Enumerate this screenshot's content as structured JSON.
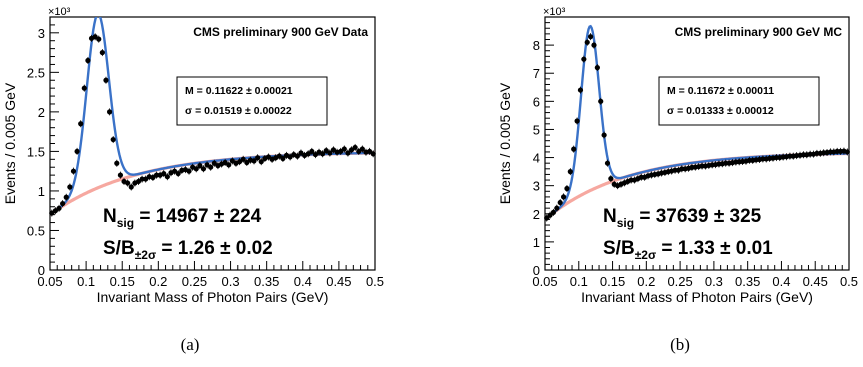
{
  "chart_data": [
    {
      "type": "scatter",
      "subfigure_label": "(a)",
      "title": "CMS preliminary 900 GeV Data",
      "xlabel": "Invariant Mass of Photon Pairs (GeV)",
      "ylabel": "Events / 0.005 GeV",
      "y_multiplier": "×10³",
      "xlim": [
        0.05,
        0.5
      ],
      "ylim": [
        0,
        3.2
      ],
      "xticks": [
        "0.05",
        "0.1",
        "0.15",
        "0.2",
        "0.25",
        "0.3",
        "0.35",
        "0.4",
        "0.45",
        "0.5"
      ],
      "yticks": [
        "0",
        "0.5",
        "1",
        "1.5",
        "2",
        "2.5",
        "3"
      ],
      "fit_box": {
        "mean_label": "M = 0.11622 ± 0.00021",
        "sigma_label": "σ = 0.01519 ± 0.00022"
      },
      "nsig_label": "N",
      "nsig_sub": "sig",
      "nsig_value": "= 14967 ± 224",
      "sb_label": "S/B",
      "sb_sub": "±2σ",
      "sb_value": "= 1.26 ± 0.02",
      "peak": {
        "mean": 0.11622,
        "sigma": 0.01519,
        "amplitude": 2.2
      },
      "background": {
        "start": 0.7,
        "x_ref": 0.05,
        "plateau": 1.5,
        "scale": 0.12
      },
      "points": [
        [
          0.0525,
          0.72
        ],
        [
          0.0575,
          0.75
        ],
        [
          0.0625,
          0.78
        ],
        [
          0.0675,
          0.84
        ],
        [
          0.0725,
          0.92
        ],
        [
          0.0775,
          1.05
        ],
        [
          0.0825,
          1.25
        ],
        [
          0.0875,
          1.5
        ],
        [
          0.0925,
          1.85
        ],
        [
          0.0975,
          2.3
        ],
        [
          0.1025,
          2.65
        ],
        [
          0.1075,
          2.93
        ],
        [
          0.1125,
          2.95
        ],
        [
          0.1175,
          2.92
        ],
        [
          0.1225,
          2.75
        ],
        [
          0.1275,
          2.4
        ],
        [
          0.1325,
          2.0
        ],
        [
          0.1375,
          1.65
        ],
        [
          0.1425,
          1.35
        ],
        [
          0.1475,
          1.2
        ],
        [
          0.1525,
          1.12
        ],
        [
          0.1575,
          1.1
        ],
        [
          0.1625,
          1.05
        ],
        [
          0.1675,
          1.1
        ],
        [
          0.1725,
          1.12
        ],
        [
          0.1775,
          1.15
        ],
        [
          0.1825,
          1.15
        ],
        [
          0.1875,
          1.18
        ],
        [
          0.1925,
          1.17
        ],
        [
          0.1975,
          1.2
        ],
        [
          0.2025,
          1.2
        ],
        [
          0.2075,
          1.22
        ],
        [
          0.2125,
          1.18
        ],
        [
          0.2175,
          1.23
        ],
        [
          0.2225,
          1.25
        ],
        [
          0.2275,
          1.22
        ],
        [
          0.2325,
          1.26
        ],
        [
          0.2375,
          1.27
        ],
        [
          0.2425,
          1.25
        ],
        [
          0.2475,
          1.3
        ],
        [
          0.2525,
          1.28
        ],
        [
          0.2575,
          1.32
        ],
        [
          0.2625,
          1.28
        ],
        [
          0.2675,
          1.33
        ],
        [
          0.2725,
          1.3
        ],
        [
          0.2775,
          1.35
        ],
        [
          0.2825,
          1.32
        ],
        [
          0.2875,
          1.34
        ],
        [
          0.2925,
          1.36
        ],
        [
          0.2975,
          1.33
        ],
        [
          0.3025,
          1.38
        ],
        [
          0.3075,
          1.35
        ],
        [
          0.3125,
          1.37
        ],
        [
          0.3175,
          1.4
        ],
        [
          0.3225,
          1.36
        ],
        [
          0.3275,
          1.39
        ],
        [
          0.3325,
          1.38
        ],
        [
          0.3375,
          1.42
        ],
        [
          0.3425,
          1.37
        ],
        [
          0.3475,
          1.41
        ],
        [
          0.3525,
          1.43
        ],
        [
          0.3575,
          1.4
        ],
        [
          0.3625,
          1.42
        ],
        [
          0.3675,
          1.44
        ],
        [
          0.3725,
          1.41
        ],
        [
          0.3775,
          1.45
        ],
        [
          0.3825,
          1.43
        ],
        [
          0.3875,
          1.46
        ],
        [
          0.3925,
          1.44
        ],
        [
          0.3975,
          1.48
        ],
        [
          0.4025,
          1.45
        ],
        [
          0.4075,
          1.47
        ],
        [
          0.4125,
          1.5
        ],
        [
          0.4175,
          1.46
        ],
        [
          0.4225,
          1.49
        ],
        [
          0.4275,
          1.47
        ],
        [
          0.4325,
          1.51
        ],
        [
          0.4375,
          1.48
        ],
        [
          0.4425,
          1.52
        ],
        [
          0.4475,
          1.49
        ],
        [
          0.4525,
          1.5
        ],
        [
          0.4575,
          1.53
        ],
        [
          0.4625,
          1.48
        ],
        [
          0.4675,
          1.52
        ],
        [
          0.4725,
          1.55
        ],
        [
          0.4775,
          1.5
        ],
        [
          0.4825,
          1.53
        ],
        [
          0.4875,
          1.49
        ],
        [
          0.4925,
          1.5
        ],
        [
          0.4975,
          1.47
        ]
      ]
    },
    {
      "type": "scatter",
      "subfigure_label": "(b)",
      "title": "CMS preliminary 900 GeV MC",
      "xlabel": "Invariant Mass of Photon Pairs (GeV)",
      "ylabel": "Events / 0.005 GeV",
      "y_multiplier": "×10³",
      "xlim": [
        0.05,
        0.5
      ],
      "ylim": [
        0,
        9
      ],
      "xticks": [
        "0.05",
        "0.1",
        "0.15",
        "0.2",
        "0.25",
        "0.3",
        "0.35",
        "0.4",
        "0.45",
        "0.5"
      ],
      "yticks": [
        "0",
        "1",
        "2",
        "3",
        "4",
        "5",
        "6",
        "7",
        "8"
      ],
      "fit_box": {
        "mean_label": "M = 0.11672 ± 0.00011",
        "sigma_label": "σ = 0.01333 ± 0.00012"
      },
      "nsig_label": "N",
      "nsig_sub": "sig",
      "nsig_value": "= 37639 ± 325",
      "sb_label": "S/B",
      "sb_sub": "±2σ",
      "sb_value": "= 1.33 ± 0.01",
      "peak": {
        "mean": 0.11672,
        "sigma": 0.01333,
        "amplitude": 5.85
      },
      "background": {
        "start": 1.8,
        "x_ref": 0.05,
        "plateau": 4.2,
        "scale": 0.12
      },
      "points": [
        [
          0.0525,
          1.85
        ],
        [
          0.0575,
          1.95
        ],
        [
          0.0625,
          2.05
        ],
        [
          0.0675,
          2.2
        ],
        [
          0.0725,
          2.4
        ],
        [
          0.0775,
          2.6
        ],
        [
          0.0825,
          2.9
        ],
        [
          0.0875,
          3.5
        ],
        [
          0.0925,
          4.3
        ],
        [
          0.0975,
          5.3
        ],
        [
          0.1025,
          6.4
        ],
        [
          0.1075,
          7.5
        ],
        [
          0.1125,
          8.1
        ],
        [
          0.1175,
          8.3
        ],
        [
          0.1225,
          8.0
        ],
        [
          0.1275,
          7.2
        ],
        [
          0.1325,
          6.0
        ],
        [
          0.1375,
          4.8
        ],
        [
          0.1425,
          3.8
        ],
        [
          0.1475,
          3.25
        ],
        [
          0.1525,
          3.05
        ],
        [
          0.1575,
          3.0
        ],
        [
          0.1625,
          3.05
        ],
        [
          0.1675,
          3.1
        ],
        [
          0.1725,
          3.15
        ],
        [
          0.1775,
          3.2
        ],
        [
          0.1825,
          3.2
        ],
        [
          0.1875,
          3.25
        ],
        [
          0.1925,
          3.3
        ],
        [
          0.1975,
          3.3
        ],
        [
          0.2025,
          3.35
        ],
        [
          0.2075,
          3.38
        ],
        [
          0.2125,
          3.4
        ],
        [
          0.2175,
          3.42
        ],
        [
          0.2225,
          3.45
        ],
        [
          0.2275,
          3.47
        ],
        [
          0.2325,
          3.5
        ],
        [
          0.2375,
          3.52
        ],
        [
          0.2425,
          3.55
        ],
        [
          0.2475,
          3.55
        ],
        [
          0.2525,
          3.6
        ],
        [
          0.2575,
          3.6
        ],
        [
          0.2625,
          3.62
        ],
        [
          0.2675,
          3.65
        ],
        [
          0.2725,
          3.66
        ],
        [
          0.2775,
          3.68
        ],
        [
          0.2825,
          3.7
        ],
        [
          0.2875,
          3.7
        ],
        [
          0.2925,
          3.72
        ],
        [
          0.2975,
          3.74
        ],
        [
          0.3025,
          3.75
        ],
        [
          0.3075,
          3.77
        ],
        [
          0.3125,
          3.78
        ],
        [
          0.3175,
          3.8
        ],
        [
          0.3225,
          3.8
        ],
        [
          0.3275,
          3.82
        ],
        [
          0.3325,
          3.84
        ],
        [
          0.3375,
          3.85
        ],
        [
          0.3425,
          3.86
        ],
        [
          0.3475,
          3.87
        ],
        [
          0.3525,
          3.9
        ],
        [
          0.3575,
          3.9
        ],
        [
          0.3625,
          3.92
        ],
        [
          0.3675,
          3.93
        ],
        [
          0.3725,
          3.95
        ],
        [
          0.3775,
          3.95
        ],
        [
          0.3825,
          3.97
        ],
        [
          0.3875,
          3.98
        ],
        [
          0.3925,
          4.0
        ],
        [
          0.3975,
          4.0
        ],
        [
          0.4025,
          4.02
        ],
        [
          0.4075,
          4.03
        ],
        [
          0.4125,
          4.05
        ],
        [
          0.4175,
          4.05
        ],
        [
          0.4225,
          4.07
        ],
        [
          0.4275,
          4.08
        ],
        [
          0.4325,
          4.1
        ],
        [
          0.4375,
          4.1
        ],
        [
          0.4425,
          4.12
        ],
        [
          0.4475,
          4.12
        ],
        [
          0.4525,
          4.15
        ],
        [
          0.4575,
          4.15
        ],
        [
          0.4625,
          4.17
        ],
        [
          0.4675,
          4.18
        ],
        [
          0.4725,
          4.2
        ],
        [
          0.4775,
          4.2
        ],
        [
          0.4825,
          4.22
        ],
        [
          0.4875,
          4.22
        ],
        [
          0.4925,
          4.23
        ],
        [
          0.4975,
          4.2
        ]
      ]
    }
  ]
}
